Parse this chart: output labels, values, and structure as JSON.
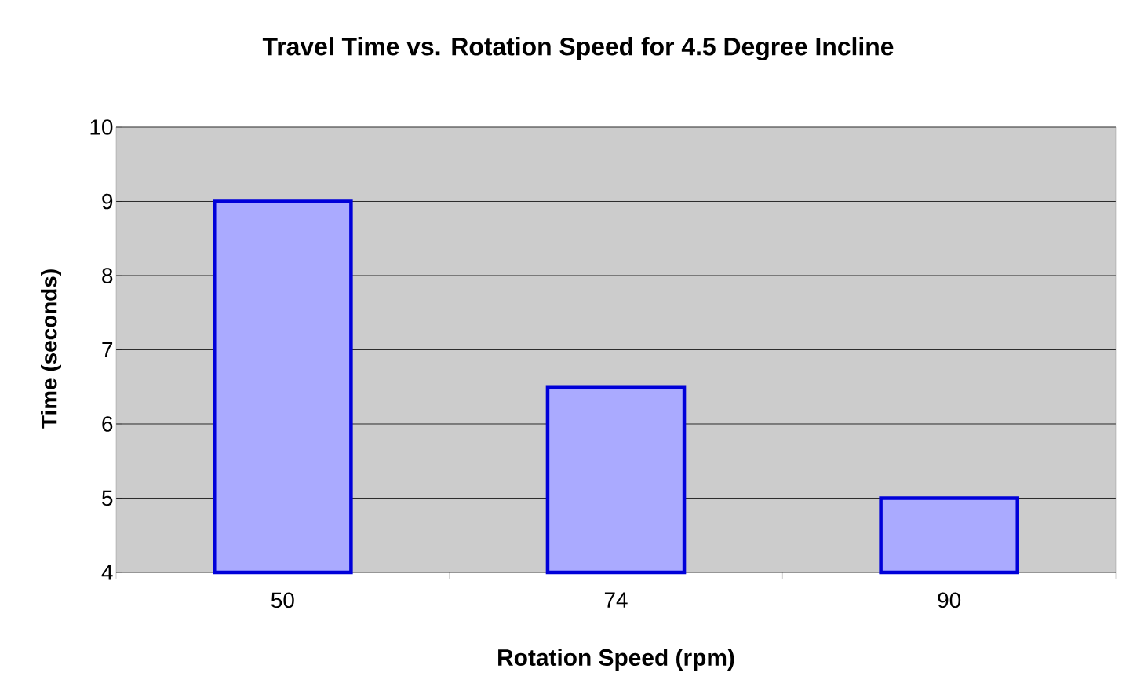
{
  "chart_data": {
    "type": "bar",
    "title": "Travel Time vs. Rotation Speed for 4.5 Degree Incline",
    "xlabel": "Rotation Speed (rpm)",
    "ylabel": "Time (seconds)",
    "categories": [
      "50",
      "74",
      "90"
    ],
    "values": [
      9,
      6.5,
      5
    ],
    "color": "#aaaaff",
    "ylim": [
      4,
      10
    ],
    "yticks": [
      4,
      5,
      6,
      7,
      8,
      9,
      10
    ],
    "grid": "y"
  }
}
